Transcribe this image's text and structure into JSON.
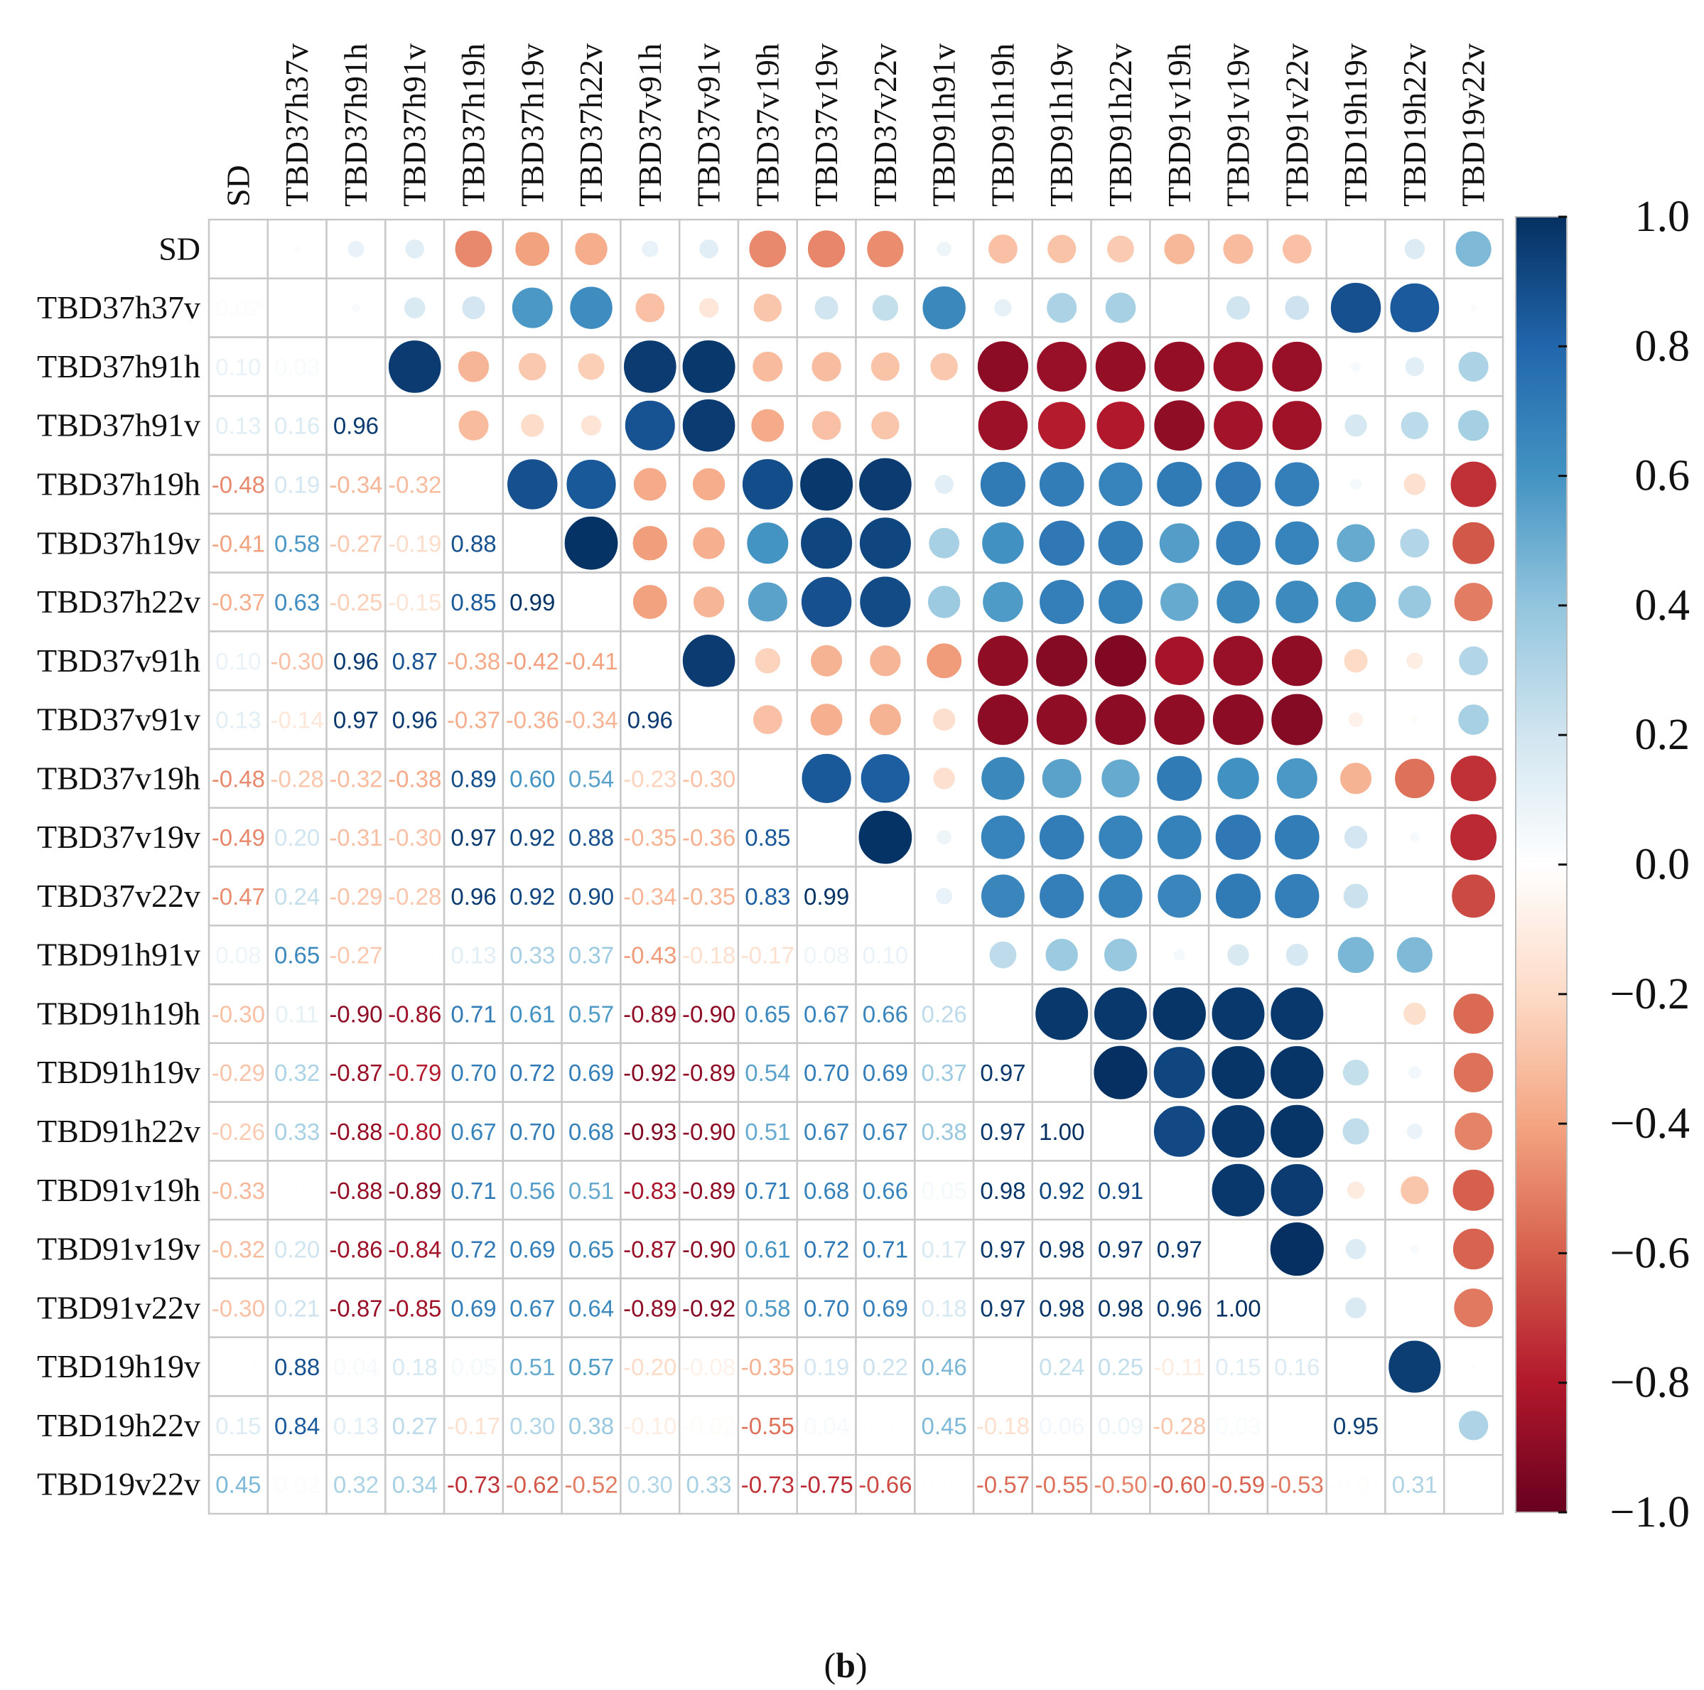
{
  "chart_data": {
    "type": "heatmap",
    "style": "corrplot-mixed (upper: circles, lower: numbers)",
    "caption_letter": "b",
    "variables": [
      "SD",
      "TBD37h37v",
      "TBD37h91h",
      "TBD37h91v",
      "TBD37h19h",
      "TBD37h19v",
      "TBD37h22v",
      "TBD37v91h",
      "TBD37v91v",
      "TBD37v19h",
      "TBD37v19v",
      "TBD37v22v",
      "TBD91h91v",
      "TBD91h19h",
      "TBD91h19v",
      "TBD91h22v",
      "TBD91v19h",
      "TBD91v19v",
      "TBD91v22v",
      "TBD19h19v",
      "TBD19h22v",
      "TBD19v22v"
    ],
    "lower_triangle": [
      [],
      [
        0.02
      ],
      [
        0.1,
        0.03
      ],
      [
        0.13,
        0.16,
        0.96
      ],
      [
        -0.48,
        0.19,
        -0.34,
        -0.32
      ],
      [
        -0.41,
        0.58,
        -0.27,
        -0.19,
        0.88
      ],
      [
        -0.37,
        0.63,
        -0.25,
        -0.15,
        0.85,
        0.99
      ],
      [
        0.1,
        -0.3,
        0.96,
        0.87,
        -0.38,
        -0.42,
        -0.41
      ],
      [
        0.13,
        -0.14,
        0.97,
        0.96,
        -0.37,
        -0.36,
        -0.34,
        0.96
      ],
      [
        -0.48,
        -0.28,
        -0.32,
        -0.38,
        0.89,
        0.6,
        0.54,
        -0.23,
        -0.3
      ],
      [
        -0.49,
        0.2,
        -0.31,
        -0.3,
        0.97,
        0.92,
        0.88,
        -0.35,
        -0.36,
        0.85
      ],
      [
        -0.47,
        0.24,
        -0.29,
        -0.28,
        0.96,
        0.92,
        0.9,
        -0.34,
        -0.35,
        0.83,
        0.99
      ],
      [
        0.08,
        0.65,
        -0.27,
        0.01,
        0.13,
        0.33,
        0.37,
        -0.43,
        -0.18,
        -0.17,
        0.08,
        0.1
      ],
      [
        -0.3,
        0.11,
        -0.9,
        -0.86,
        0.71,
        0.61,
        0.57,
        -0.89,
        -0.9,
        0.65,
        0.67,
        0.66,
        0.26
      ],
      [
        -0.29,
        0.32,
        -0.87,
        -0.79,
        0.7,
        0.72,
        0.69,
        -0.92,
        -0.89,
        0.54,
        0.7,
        0.69,
        0.37,
        0.97
      ],
      [
        -0.26,
        0.33,
        -0.88,
        -0.8,
        0.67,
        0.7,
        0.68,
        -0.93,
        -0.9,
        0.51,
        0.67,
        0.67,
        0.38,
        0.97,
        1.0
      ],
      [
        -0.33,
        0.01,
        -0.88,
        -0.89,
        0.71,
        0.56,
        0.51,
        -0.83,
        -0.89,
        0.71,
        0.68,
        0.66,
        0.05,
        0.98,
        0.92,
        0.91
      ],
      [
        -0.32,
        0.2,
        -0.86,
        -0.84,
        0.72,
        0.69,
        0.65,
        -0.87,
        -0.9,
        0.61,
        0.72,
        0.71,
        0.17,
        0.97,
        0.98,
        0.97,
        0.97
      ],
      [
        -0.3,
        0.21,
        -0.87,
        -0.85,
        0.69,
        0.67,
        0.64,
        -0.89,
        -0.92,
        0.58,
        0.7,
        0.69,
        0.18,
        0.97,
        0.98,
        0.98,
        0.96,
        1.0
      ],
      [
        0.01,
        0.88,
        0.04,
        0.18,
        0.05,
        0.51,
        0.57,
        -0.2,
        -0.08,
        -0.35,
        0.19,
        0.22,
        0.46,
        0.0,
        0.24,
        0.25,
        -0.11,
        0.15,
        0.16
      ],
      [
        0.15,
        0.84,
        0.13,
        0.27,
        -0.17,
        0.3,
        0.38,
        -0.1,
        -0.02,
        -0.55,
        0.04,
        0.01,
        0.45,
        -0.18,
        0.06,
        0.09,
        -0.28,
        0.03,
        0.0,
        0.95
      ],
      [
        0.45,
        0.02,
        0.32,
        0.34,
        -0.73,
        -0.62,
        -0.52,
        0.3,
        0.33,
        -0.73,
        -0.75,
        -0.66,
        0.01,
        -0.57,
        -0.55,
        -0.5,
        -0.6,
        -0.59,
        -0.53,
        -0.01,
        0.31
      ]
    ],
    "colorbar": {
      "range": [
        -1.0,
        1.0
      ],
      "tick_labels": [
        "1.0",
        "0.8",
        "0.6",
        "0.4",
        "0.2",
        "0.0",
        "−0.2",
        "−0.4",
        "−0.6",
        "−0.8",
        "−1.0"
      ],
      "tick_values": [
        1.0,
        0.8,
        0.6,
        0.4,
        0.2,
        0.0,
        -0.2,
        -0.4,
        -0.6,
        -0.8,
        -1.0
      ],
      "palette": [
        "#67001F",
        "#B2182B",
        "#D6604D",
        "#F4A582",
        "#FDDBC7",
        "#FFFFFF",
        "#D1E5F0",
        "#92C5DE",
        "#4393C3",
        "#2166AC",
        "#053061"
      ]
    },
    "grid": true
  }
}
